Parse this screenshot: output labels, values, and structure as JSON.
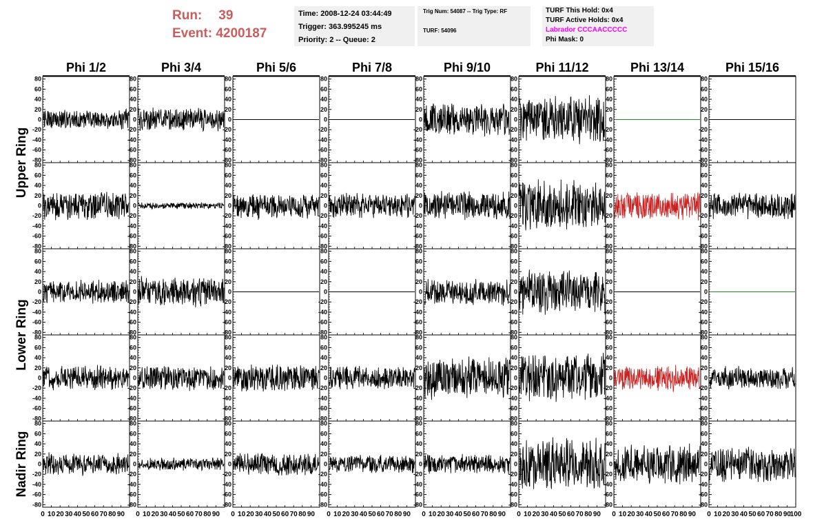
{
  "header": {
    "run_label": "Run:",
    "run_value": "39",
    "event_label": "Event:",
    "event_value": "4200187",
    "time": "Time: 2008-12-24 03:44:49",
    "trigger": "Trigger: 363.995245 ms",
    "priority": "Priority: 2 -- Queue: 2",
    "trig_num": "Trig Num: 54087 -- Trig Type: RF",
    "turf": "TURF: 54096",
    "turf_this_hold": "TURF This Hold: 0x4",
    "turf_active_holds": "TURF Active Holds: 0x4",
    "labrador": "Labrador CCCAACCCCC",
    "phi_mask": "Phi Mask: 0"
  },
  "colors": {
    "header_red": "#cd5c5c",
    "trace": "#000000",
    "triggered_trace": "#cc2222",
    "flat_trace_green": "#228b22",
    "labrador": "#ff00ff",
    "info_bg": "#f0f0f0"
  },
  "chart_data": {
    "type": "line",
    "columns": [
      "Phi 1/2",
      "Phi 3/4",
      "Phi 5/6",
      "Phi 7/8",
      "Phi 9/10",
      "Phi 11/12",
      "Phi 13/14",
      "Phi 15/16"
    ],
    "ring_labels": [
      {
        "label": "Upper Ring",
        "rows": [
          0,
          1
        ]
      },
      {
        "label": "Lower Ring",
        "rows": [
          2,
          3
        ]
      },
      {
        "label": "Nadir Ring",
        "rows": [
          4
        ]
      }
    ],
    "xlim": [
      0,
      100
    ],
    "ylim": [
      -85,
      85
    ],
    "x_ticks": [
      "0",
      "10",
      "20",
      "30",
      "40",
      "50",
      "60",
      "70",
      "80",
      "90",
      "100"
    ],
    "y_ticks": [
      80,
      60,
      40,
      20,
      0,
      -20,
      -40,
      -60,
      -80
    ],
    "samples_per_trace": 260,
    "panels": [
      [
        {
          "amplitude": 12,
          "style": "normal",
          "seed": 11
        },
        {
          "amplitude": 14,
          "style": "normal",
          "seed": 12
        },
        {
          "amplitude": 0,
          "style": "flat",
          "seed": 13
        },
        {
          "amplitude": 0,
          "style": "flat",
          "seed": 14
        },
        {
          "amplitude": 20,
          "style": "normal",
          "seed": 15
        },
        {
          "amplitude": 30,
          "style": "normal",
          "seed": 16
        },
        {
          "amplitude": 0,
          "style": "flat_green",
          "seed": 17
        },
        {
          "amplitude": 0,
          "style": "flat",
          "seed": 18
        }
      ],
      [
        {
          "amplitude": 18,
          "style": "normal",
          "seed": 21
        },
        {
          "amplitude": 4,
          "style": "normal",
          "seed": 22
        },
        {
          "amplitude": 16,
          "style": "normal",
          "seed": 23
        },
        {
          "amplitude": 15,
          "style": "normal",
          "seed": 24
        },
        {
          "amplitude": 18,
          "style": "normal",
          "seed": 25
        },
        {
          "amplitude": 30,
          "style": "normal",
          "seed": 26
        },
        {
          "amplitude": 17,
          "style": "red",
          "seed": 27
        },
        {
          "amplitude": 16,
          "style": "normal",
          "seed": 28
        }
      ],
      [
        {
          "amplitude": 14,
          "style": "normal",
          "seed": 31
        },
        {
          "amplitude": 18,
          "style": "normal",
          "seed": 32
        },
        {
          "amplitude": 0,
          "style": "flat",
          "seed": 33
        },
        {
          "amplitude": 0,
          "style": "flat",
          "seed": 34
        },
        {
          "amplitude": 16,
          "style": "normal",
          "seed": 35
        },
        {
          "amplitude": 28,
          "style": "normal",
          "seed": 36
        },
        {
          "amplitude": 0,
          "style": "flat",
          "seed": 37
        },
        {
          "amplitude": 0,
          "style": "flat_green",
          "seed": 38
        }
      ],
      [
        {
          "amplitude": 15,
          "style": "normal",
          "seed": 41
        },
        {
          "amplitude": 15,
          "style": "normal",
          "seed": 42
        },
        {
          "amplitude": 17,
          "style": "normal",
          "seed": 43
        },
        {
          "amplitude": 14,
          "style": "normal",
          "seed": 44
        },
        {
          "amplitude": 26,
          "style": "normal",
          "seed": 45
        },
        {
          "amplitude": 30,
          "style": "normal",
          "seed": 46
        },
        {
          "amplitude": 16,
          "style": "red",
          "seed": 47
        },
        {
          "amplitude": 14,
          "style": "normal",
          "seed": 48
        }
      ],
      [
        {
          "amplitude": 14,
          "style": "normal",
          "seed": 51
        },
        {
          "amplitude": 8,
          "style": "normal",
          "seed": 52
        },
        {
          "amplitude": 14,
          "style": "normal",
          "seed": 53
        },
        {
          "amplitude": 11,
          "style": "normal",
          "seed": 54
        },
        {
          "amplitude": 12,
          "style": "normal",
          "seed": 55
        },
        {
          "amplitude": 32,
          "style": "normal",
          "seed": 56
        },
        {
          "amplitude": 24,
          "style": "normal",
          "seed": 57
        },
        {
          "amplitude": 22,
          "style": "normal",
          "seed": 58
        }
      ]
    ]
  }
}
